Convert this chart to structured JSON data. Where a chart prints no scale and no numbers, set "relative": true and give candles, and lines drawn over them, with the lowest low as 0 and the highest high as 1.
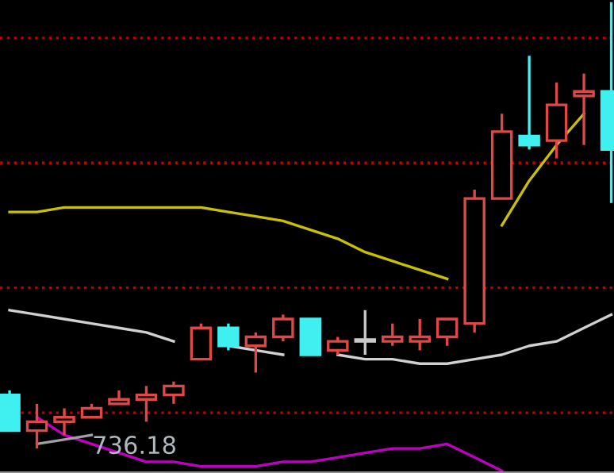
{
  "chart_data": {
    "type": "candlestick",
    "relative": true,
    "categories": [
      null,
      null,
      null,
      null,
      null,
      null,
      null,
      null,
      null,
      null,
      null,
      null,
      null,
      null,
      null,
      null,
      null,
      null,
      null,
      null,
      null,
      null,
      null
    ],
    "ohlc": [
      [
        0.12,
        0.13,
        0.04,
        0.04
      ],
      [
        0.04,
        0.1,
        0,
        0.06
      ],
      [
        0.06,
        0.09,
        0.03,
        0.07
      ],
      [
        0.07,
        0.1,
        0.07,
        0.09
      ],
      [
        0.1,
        0.13,
        0.1,
        0.11
      ],
      [
        0.11,
        0.14,
        0.06,
        0.12
      ],
      [
        0.12,
        0.15,
        0.1,
        0.14
      ],
      [
        0.2,
        0.28,
        0.2,
        0.27
      ],
      [
        0.27,
        0.28,
        0.22,
        0.23
      ],
      [
        0.23,
        0.26,
        0.17,
        0.25
      ],
      [
        0.25,
        0.3,
        0.24,
        0.29
      ],
      [
        0.29,
        0.29,
        0.21,
        0.21
      ],
      [
        0.22,
        0.25,
        0.21,
        0.24
      ],
      [
        0.24,
        0.31,
        0.21,
        0.24
      ],
      [
        0.24,
        0.28,
        0.23,
        0.25
      ],
      [
        0.24,
        0.29,
        0.22,
        0.25
      ],
      [
        0.25,
        0.29,
        0.23,
        0.29
      ],
      [
        0.28,
        0.58,
        0.26,
        0.56
      ],
      [
        0.56,
        0.75,
        0.56,
        0.71
      ],
      [
        0.7,
        0.88,
        0.67,
        0.68
      ],
      [
        0.69,
        0.82,
        0.65,
        0.77
      ],
      [
        0.79,
        0.84,
        0.68,
        0.8
      ],
      [
        0.8,
        1,
        0.55,
        0.67
      ]
    ],
    "colors": [
      "#40f0f0",
      "#e04848",
      "#e04848",
      "#e04848",
      "#e04848",
      "#e04848",
      "#e04848",
      "#e04848",
      "#40f0f0",
      "#e04848",
      "#e04848",
      "#40f0f0",
      "#e04848",
      "#c8c8c8",
      "#e04848",
      "#e04848",
      "#e04848",
      "#e04848",
      "#e04848",
      "#40f0f0",
      "#e04848",
      "#e04848",
      "#40f0f0"
    ],
    "series": [
      {
        "type": "line",
        "color": "#c8c000",
        "values": [
          0.53,
          0.53,
          0.54,
          0.54,
          0.54,
          0.54,
          0.54,
          0.54,
          0.53,
          0.52,
          0.51,
          0.49,
          0.47,
          0.44,
          0.42,
          0.4,
          0.38,
          null,
          0.5,
          0.6,
          0.68,
          0.75,
          null
        ]
      },
      {
        "type": "line",
        "color": "#d0d0d0",
        "values": [
          0.31,
          0.3,
          0.29,
          0.28,
          0.27,
          0.26,
          0.24,
          null,
          0.23,
          0.22,
          0.21,
          null,
          0.21,
          0.2,
          0.2,
          0.19,
          0.19,
          0.2,
          0.21,
          0.23,
          0.24,
          0.27,
          0.3
        ]
      },
      {
        "type": "line",
        "color": "#c000c0",
        "values": [
          null,
          0.07,
          0.03,
          0.01,
          -0.01,
          -0.03,
          -0.03,
          -0.04,
          -0.04,
          -0.04,
          -0.03,
          -0.03,
          -0.02,
          -0.01,
          0,
          0,
          0.01,
          -0.02,
          -0.05,
          null,
          null,
          null,
          null
        ]
      },
      {
        "type": "line",
        "color": "#a0a0a0",
        "values": [
          null,
          0.01,
          0.02,
          0.03,
          null,
          null,
          null,
          null,
          null,
          null,
          null,
          null,
          null,
          null,
          null,
          null,
          null,
          null,
          null,
          null,
          null,
          null,
          null
        ]
      }
    ],
    "ref_lines": [
      {
        "axis": "y",
        "value": 0.92,
        "color": "#c00000",
        "line_style": "dotted"
      },
      {
        "axis": "y",
        "value": 0.64,
        "color": "#c00000",
        "line_style": "dotted"
      },
      {
        "axis": "y",
        "value": 0.36,
        "color": "#c00000",
        "line_style": "dotted"
      },
      {
        "axis": "y",
        "value": 0.08,
        "color": "#c00000",
        "line_style": "dotted"
      }
    ],
    "annotations": [
      "736.18"
    ]
  }
}
